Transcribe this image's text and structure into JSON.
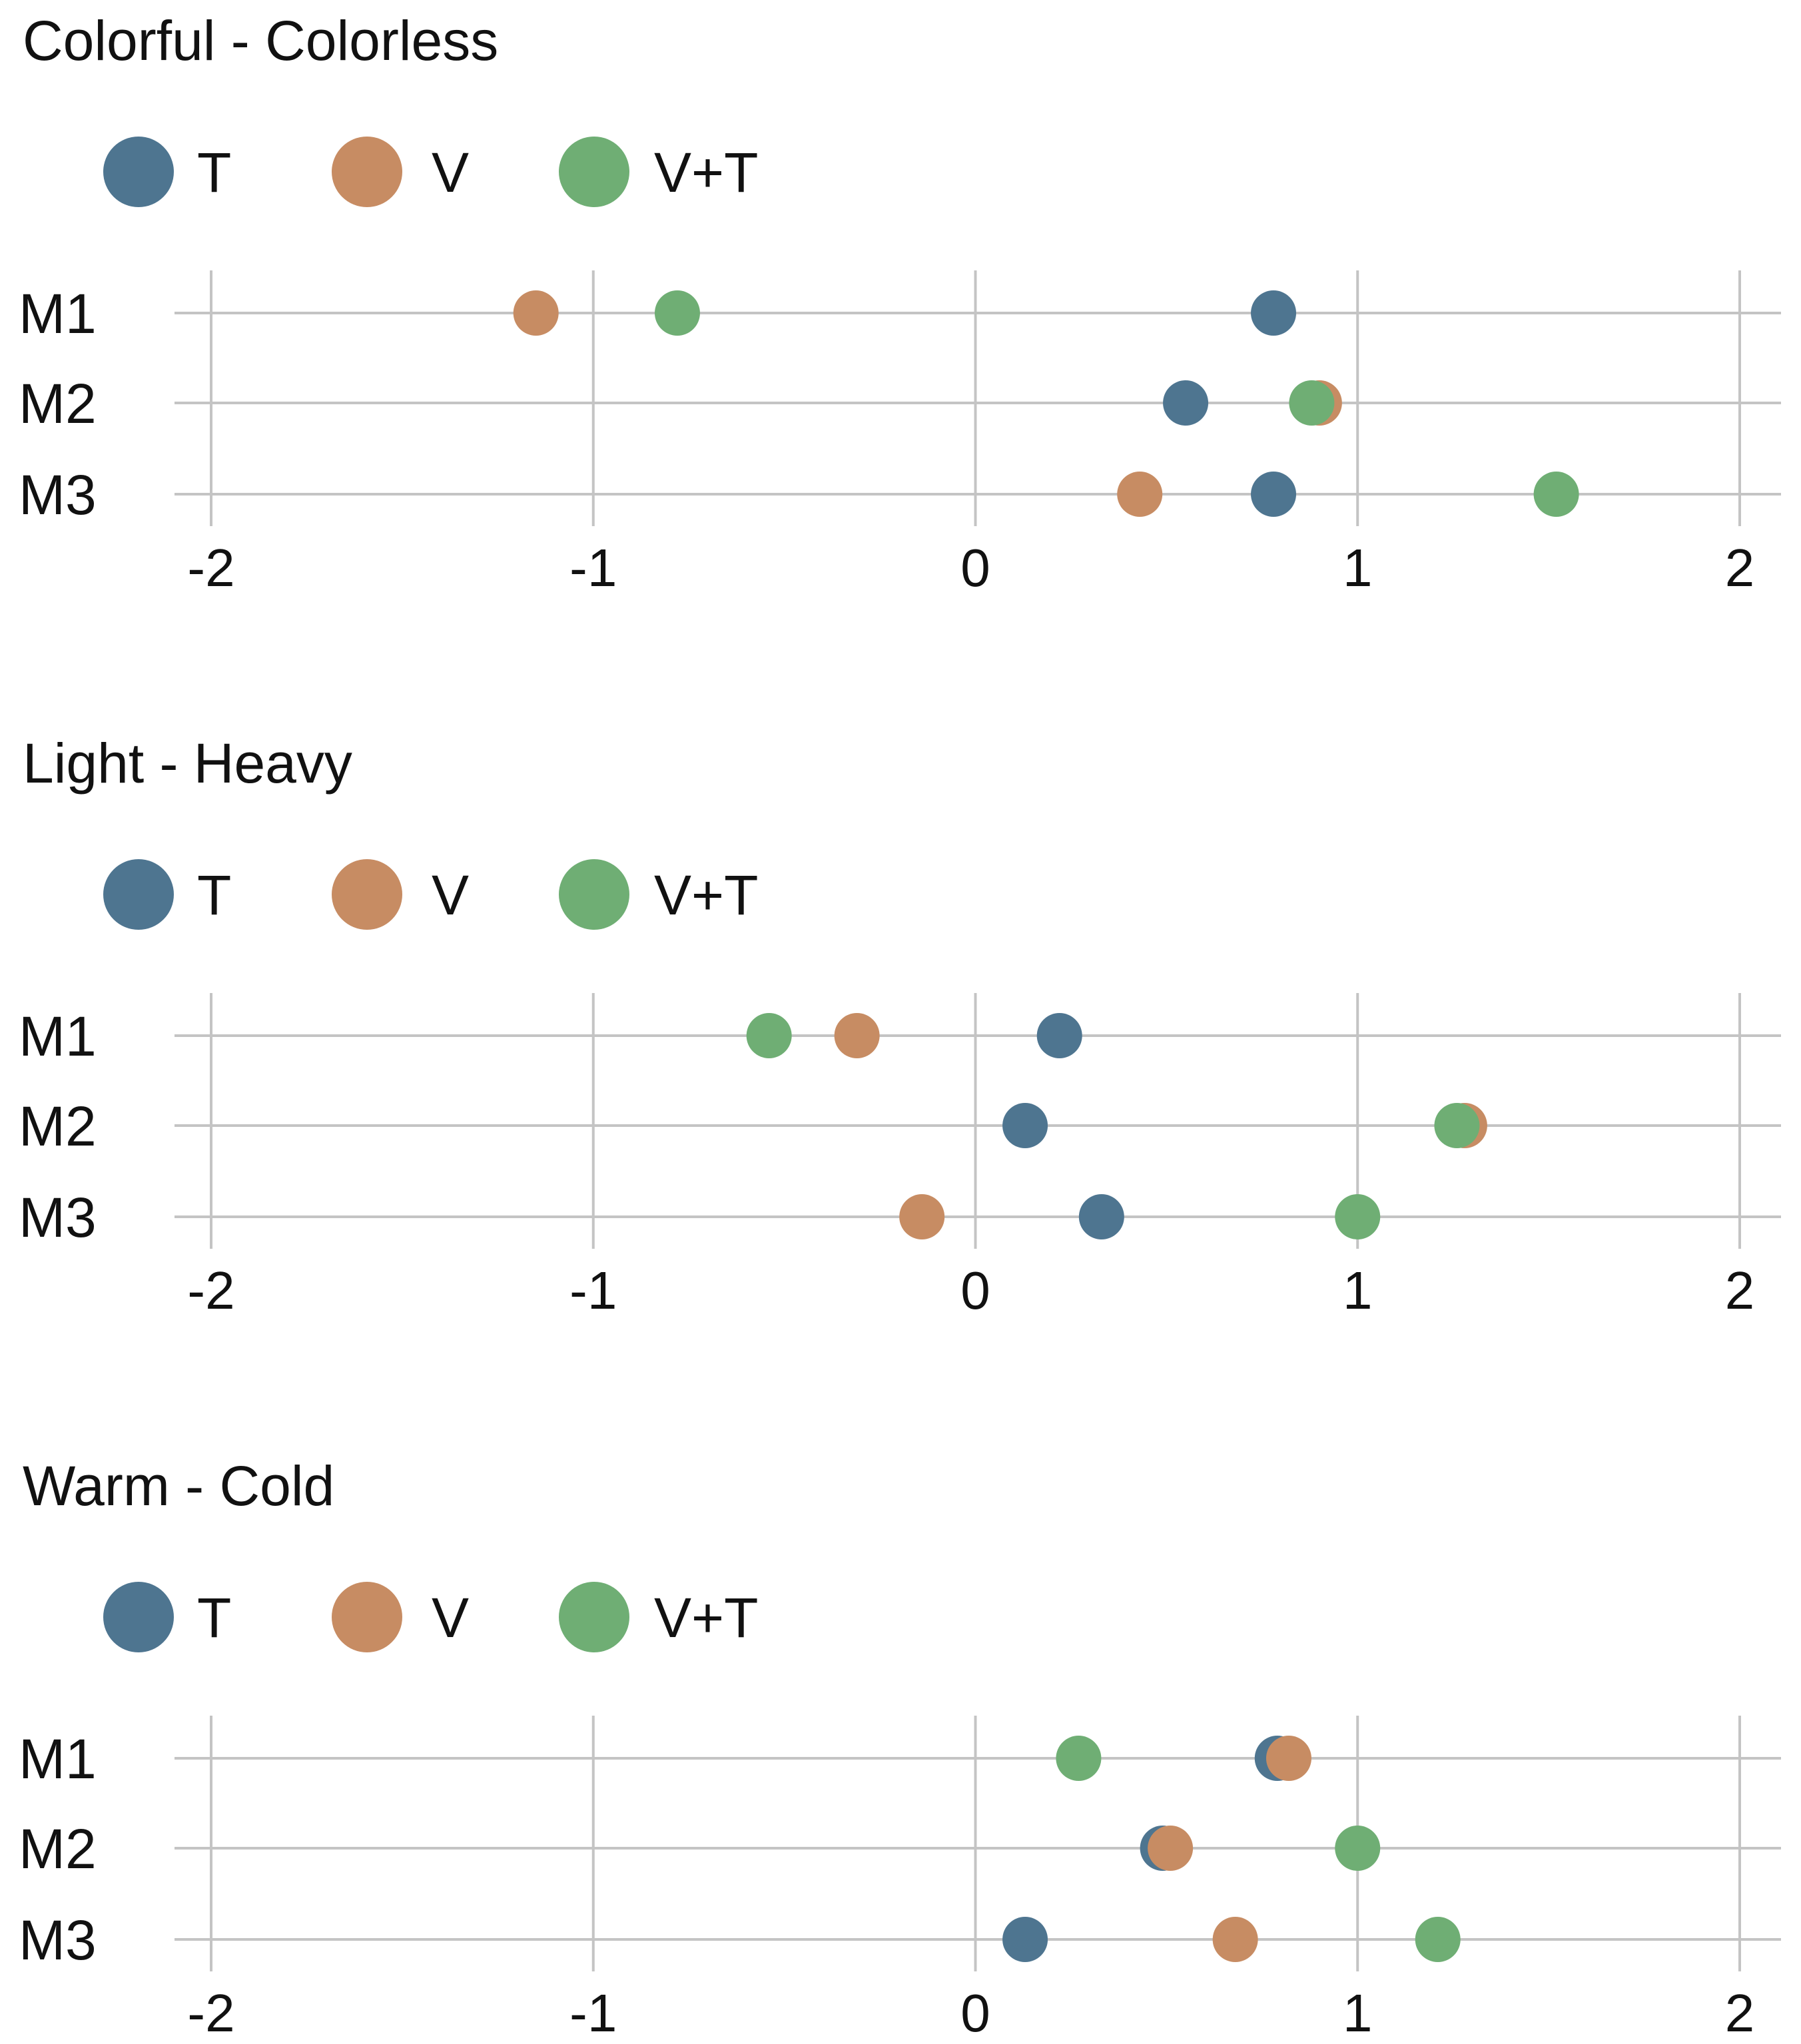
{
  "chart_data": [
    {
      "type": "scatter",
      "title": "Colorful - Colorless",
      "xlim": [
        -2,
        2
      ],
      "xticks": [
        "-2",
        "-1",
        "0",
        "1",
        "2"
      ],
      "categories": [
        "M1",
        "M2",
        "M3"
      ],
      "series": [
        {
          "name": "T",
          "color": "#4e7590",
          "values": [
            0.78,
            0.55,
            0.78
          ]
        },
        {
          "name": "V",
          "color": "#c78c63",
          "values": [
            -1.15,
            0.9,
            0.43
          ]
        },
        {
          "name": "V+T",
          "color": "#6fae74",
          "values": [
            -0.78,
            0.88,
            1.52
          ]
        }
      ]
    },
    {
      "type": "scatter",
      "title": "Light - Heavy",
      "xlim": [
        -2,
        2
      ],
      "xticks": [
        "-2",
        "-1",
        "0",
        "1",
        "2"
      ],
      "categories": [
        "M1",
        "M2",
        "M3"
      ],
      "series": [
        {
          "name": "T",
          "color": "#4e7590",
          "values": [
            0.22,
            0.13,
            0.33
          ]
        },
        {
          "name": "V",
          "color": "#c78c63",
          "values": [
            -0.31,
            1.28,
            -0.14
          ]
        },
        {
          "name": "V+T",
          "color": "#6fae74",
          "values": [
            -0.54,
            1.26,
            1.0
          ]
        }
      ]
    },
    {
      "type": "scatter",
      "title": "Warm - Cold",
      "xlim": [
        -2,
        2
      ],
      "xticks": [
        "-2",
        "-1",
        "0",
        "1",
        "2"
      ],
      "categories": [
        "M1",
        "M2",
        "M3"
      ],
      "series": [
        {
          "name": "T",
          "color": "#4e7590",
          "values": [
            0.79,
            0.49,
            0.13
          ]
        },
        {
          "name": "V",
          "color": "#c78c63",
          "values": [
            0.82,
            0.51,
            0.68
          ]
        },
        {
          "name": "V+T",
          "color": "#6fae74",
          "values": [
            0.27,
            1.0,
            1.21
          ]
        }
      ]
    }
  ]
}
